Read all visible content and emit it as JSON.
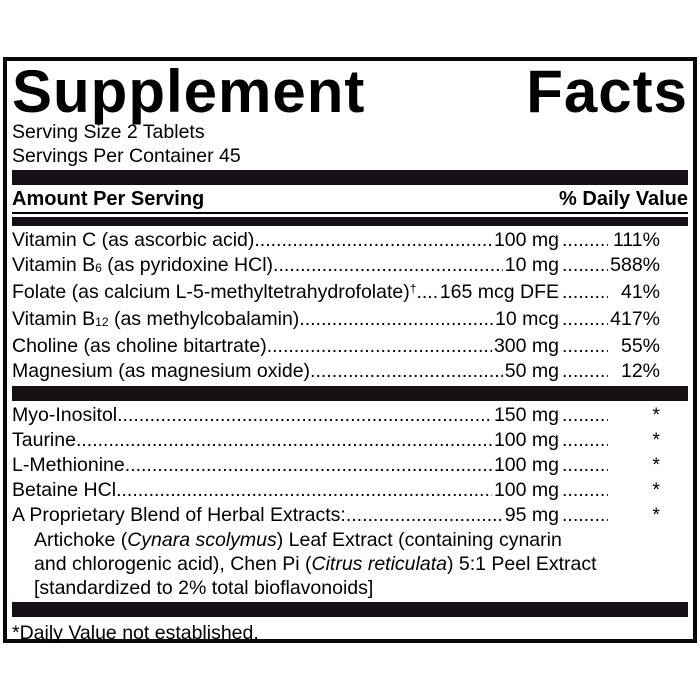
{
  "panel": {
    "title_word1": "Supplement",
    "title_word2": "Facts",
    "serving_size": "Serving Size 2 Tablets",
    "servings_per_container": "Servings Per Container 45",
    "header": {
      "amount_label": "Amount Per Serving",
      "dv_label": "% Daily Value"
    },
    "footnote": "*Daily Value not established."
  },
  "section1": {
    "rows": [
      {
        "name": "Vitamin C (as ascorbic acid)",
        "amount": "100 mg",
        "dv": "111%"
      },
      {
        "name_pre": "Vitamin B",
        "sub": "6",
        "name_post": " (as pyridoxine HCl)",
        "amount": "10 mg",
        "dv": "588%"
      },
      {
        "name": "Folate (as calcium L-5-methyltetrahydrofolate)",
        "sup": "†",
        "amount": "165 mcg DFE",
        "dv": "41%"
      },
      {
        "name_pre": "Vitamin B",
        "sub": "12",
        "name_post": " (as methylcobalamin)",
        "amount": "10 mcg",
        "dv": "417%"
      },
      {
        "name": "Choline (as choline bitartrate)",
        "amount": "300 mg",
        "dv": "55%"
      },
      {
        "name": "Magnesium (as magnesium oxide)",
        "amount": "50 mg",
        "dv": "12%"
      }
    ]
  },
  "section2": {
    "rows": [
      {
        "name": "Myo-Inositol",
        "amount": "150 mg",
        "dv": "*"
      },
      {
        "name": "Taurine",
        "amount": "100 mg",
        "dv": "*"
      },
      {
        "name": "L-Methionine",
        "amount": "100 mg",
        "dv": "*"
      },
      {
        "name": "Betaine HCl",
        "amount": "100 mg",
        "dv": "*"
      },
      {
        "name": "A Proprietary Blend of Herbal Extracts:",
        "amount": "95 mg",
        "dv": "*"
      }
    ],
    "blend_description": [
      {
        "pre": "Artichoke (",
        "italic": "Cynara scolymus",
        "post": ") Leaf Extract (containing cynarin"
      },
      {
        "pre": "and chlorogenic acid), Chen Pi (",
        "italic": "Citrus reticulata",
        "post": ") 5:1 Peel Extract"
      },
      {
        "pre": "[standardized to 2% total bioflavonoids]",
        "italic": "",
        "post": ""
      }
    ]
  },
  "colors": {
    "bar": "#171117",
    "border": "#0b0709",
    "text": "#000000",
    "background": "#ffffff"
  }
}
